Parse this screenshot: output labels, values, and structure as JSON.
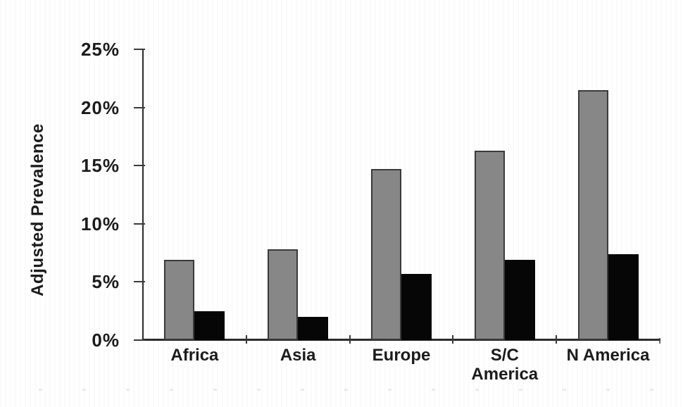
{
  "figure": {
    "background_color": "#ffffff",
    "text_color": "#1b1b1b",
    "axis_color": "#2b2b2b"
  },
  "chart_data": {
    "type": "bar",
    "title": "",
    "xlabel": "",
    "ylabel": "Adjusted Prevalence",
    "ylim": [
      0,
      25
    ],
    "grid": false,
    "legend_position": "none",
    "categories": [
      "Africa",
      "Asia",
      "Europe",
      "S/C\nAmerica",
      "N America"
    ],
    "yticks": [
      {
        "value": 0,
        "label": "0%"
      },
      {
        "value": 5,
        "label": "5%"
      },
      {
        "value": 10,
        "label": "10%"
      },
      {
        "value": 15,
        "label": "15%"
      },
      {
        "value": 20,
        "label": "20%"
      },
      {
        "value": 25,
        "label": "25%"
      }
    ],
    "series": [
      {
        "name": "gray-bars",
        "color": "#878787",
        "border_color": "#3a3a3a",
        "values": [
          6.9,
          7.8,
          14.7,
          16.3,
          21.5
        ]
      },
      {
        "name": "black-bars",
        "color": "#060606",
        "border_color": "#060606",
        "values": [
          2.5,
          2.0,
          5.7,
          6.9,
          7.4
        ]
      }
    ]
  }
}
